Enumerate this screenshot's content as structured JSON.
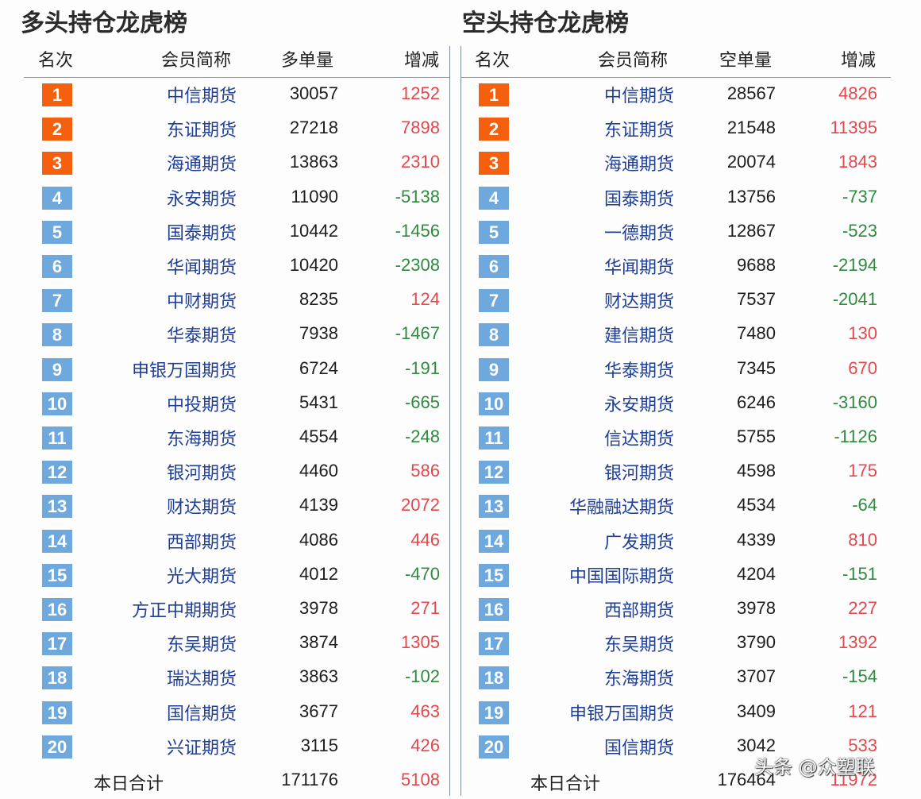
{
  "long": {
    "title": "多头持仓龙虎榜",
    "headers": {
      "rank": "名次",
      "member": "会员简称",
      "volume": "多单量",
      "change": "增减"
    },
    "rows": [
      {
        "rank": "1",
        "member": "中信期货",
        "volume": "30057",
        "change": "1252",
        "dir": "up"
      },
      {
        "rank": "2",
        "member": "东证期货",
        "volume": "27218",
        "change": "7898",
        "dir": "up"
      },
      {
        "rank": "3",
        "member": "海通期货",
        "volume": "13863",
        "change": "2310",
        "dir": "up"
      },
      {
        "rank": "4",
        "member": "永安期货",
        "volume": "11090",
        "change": "-5138",
        "dir": "down"
      },
      {
        "rank": "5",
        "member": "国泰期货",
        "volume": "10442",
        "change": "-1456",
        "dir": "down"
      },
      {
        "rank": "6",
        "member": "华闻期货",
        "volume": "10420",
        "change": "-2308",
        "dir": "down"
      },
      {
        "rank": "7",
        "member": "中财期货",
        "volume": "8235",
        "change": "124",
        "dir": "up"
      },
      {
        "rank": "8",
        "member": "华泰期货",
        "volume": "7938",
        "change": "-1467",
        "dir": "down"
      },
      {
        "rank": "9",
        "member": "申银万国期货",
        "volume": "6724",
        "change": "-191",
        "dir": "down"
      },
      {
        "rank": "10",
        "member": "中投期货",
        "volume": "5431",
        "change": "-665",
        "dir": "down"
      },
      {
        "rank": "11",
        "member": "东海期货",
        "volume": "4554",
        "change": "-248",
        "dir": "down"
      },
      {
        "rank": "12",
        "member": "银河期货",
        "volume": "4460",
        "change": "586",
        "dir": "up"
      },
      {
        "rank": "13",
        "member": "财达期货",
        "volume": "4139",
        "change": "2072",
        "dir": "up"
      },
      {
        "rank": "14",
        "member": "西部期货",
        "volume": "4086",
        "change": "446",
        "dir": "up"
      },
      {
        "rank": "15",
        "member": "光大期货",
        "volume": "4012",
        "change": "-470",
        "dir": "down"
      },
      {
        "rank": "16",
        "member": "方正中期期货",
        "volume": "3978",
        "change": "271",
        "dir": "up"
      },
      {
        "rank": "17",
        "member": "东吴期货",
        "volume": "3874",
        "change": "1305",
        "dir": "up"
      },
      {
        "rank": "18",
        "member": "瑞达期货",
        "volume": "3863",
        "change": "-102",
        "dir": "down"
      },
      {
        "rank": "19",
        "member": "国信期货",
        "volume": "3677",
        "change": "463",
        "dir": "up"
      },
      {
        "rank": "20",
        "member": "兴证期货",
        "volume": "3115",
        "change": "426",
        "dir": "up"
      }
    ],
    "total": {
      "label": "本日合计",
      "volume": "171176",
      "change": "5108"
    }
  },
  "short": {
    "title": "空头持仓龙虎榜",
    "headers": {
      "rank": "名次",
      "member": "会员简称",
      "volume": "空单量",
      "change": "增减"
    },
    "rows": [
      {
        "rank": "1",
        "member": "中信期货",
        "volume": "28567",
        "change": "4826",
        "dir": "up"
      },
      {
        "rank": "2",
        "member": "东证期货",
        "volume": "21548",
        "change": "11395",
        "dir": "up"
      },
      {
        "rank": "3",
        "member": "海通期货",
        "volume": "20074",
        "change": "1843",
        "dir": "up"
      },
      {
        "rank": "4",
        "member": "国泰期货",
        "volume": "13756",
        "change": "-737",
        "dir": "down"
      },
      {
        "rank": "5",
        "member": "一德期货",
        "volume": "12867",
        "change": "-523",
        "dir": "down"
      },
      {
        "rank": "6",
        "member": "华闻期货",
        "volume": "9688",
        "change": "-2194",
        "dir": "down"
      },
      {
        "rank": "7",
        "member": "财达期货",
        "volume": "7537",
        "change": "-2041",
        "dir": "down"
      },
      {
        "rank": "8",
        "member": "建信期货",
        "volume": "7480",
        "change": "130",
        "dir": "up"
      },
      {
        "rank": "9",
        "member": "华泰期货",
        "volume": "7345",
        "change": "670",
        "dir": "up"
      },
      {
        "rank": "10",
        "member": "永安期货",
        "volume": "6246",
        "change": "-3160",
        "dir": "down"
      },
      {
        "rank": "11",
        "member": "信达期货",
        "volume": "5755",
        "change": "-1126",
        "dir": "down"
      },
      {
        "rank": "12",
        "member": "银河期货",
        "volume": "4598",
        "change": "175",
        "dir": "up"
      },
      {
        "rank": "13",
        "member": "华融融达期货",
        "volume": "4534",
        "change": "-64",
        "dir": "down"
      },
      {
        "rank": "14",
        "member": "广发期货",
        "volume": "4339",
        "change": "810",
        "dir": "up"
      },
      {
        "rank": "15",
        "member": "中国国际期货",
        "volume": "4204",
        "change": "-151",
        "dir": "down"
      },
      {
        "rank": "16",
        "member": "西部期货",
        "volume": "3978",
        "change": "227",
        "dir": "up"
      },
      {
        "rank": "17",
        "member": "东吴期货",
        "volume": "3790",
        "change": "1392",
        "dir": "up"
      },
      {
        "rank": "18",
        "member": "东海期货",
        "volume": "3707",
        "change": "-154",
        "dir": "down"
      },
      {
        "rank": "19",
        "member": "申银万国期货",
        "volume": "3409",
        "change": "121",
        "dir": "up"
      },
      {
        "rank": "20",
        "member": "国信期货",
        "volume": "3042",
        "change": "533",
        "dir": "up"
      }
    ],
    "total": {
      "label": "本日合计",
      "volume": "176464",
      "change": "11972"
    }
  },
  "watermark": "头条 @众塑联",
  "colors": {
    "top3_badge": "#f5600f",
    "rank_badge": "#6fa8dc",
    "member_text": "#1f3f99",
    "increase": "#e4484c",
    "decrease": "#2e8b3e"
  }
}
